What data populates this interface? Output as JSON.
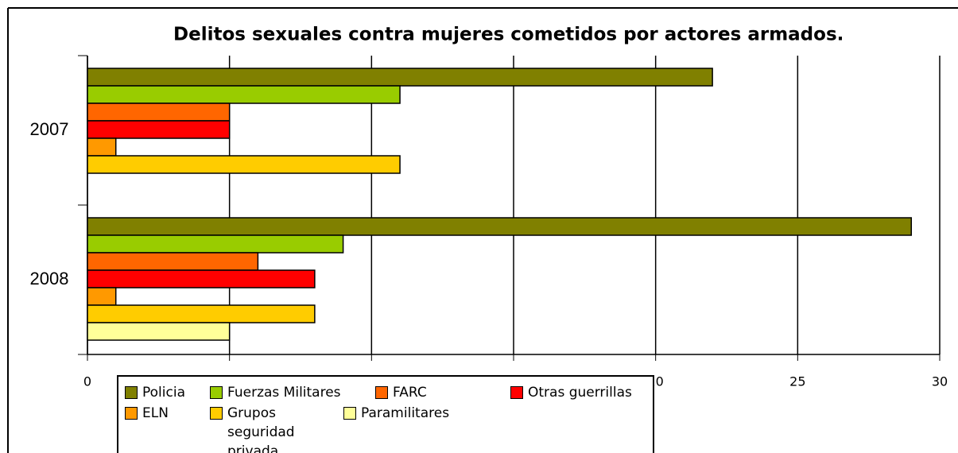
{
  "chart_data": {
    "type": "hbar",
    "title": "Delitos sexuales contra mujeres cometidos por actores armados.",
    "categories": [
      "2007",
      "2008"
    ],
    "series": [
      {
        "name": "Policia",
        "color": "#808000",
        "values": [
          22,
          29
        ]
      },
      {
        "name": "Fuerzas Militares",
        "color": "#99cc00",
        "values": [
          11,
          9
        ]
      },
      {
        "name": "FARC",
        "color": "#ff6600",
        "values": [
          5,
          6
        ]
      },
      {
        "name": "Otras guerrillas",
        "color": "#ff0000",
        "values": [
          5,
          8
        ]
      },
      {
        "name": "ELN",
        "color": "#ff9900",
        "values": [
          1,
          1
        ]
      },
      {
        "name": "Grupos seguridad privada",
        "color": "#ffcc00",
        "values": [
          11,
          8
        ]
      },
      {
        "name": "Paramilitares",
        "color": "#ffff99",
        "values": [
          0,
          5
        ]
      }
    ],
    "xlim": [
      0,
      30
    ],
    "xticks": [
      0,
      5,
      10,
      15,
      20,
      25,
      30
    ],
    "grid": true,
    "legend": "bottom"
  }
}
